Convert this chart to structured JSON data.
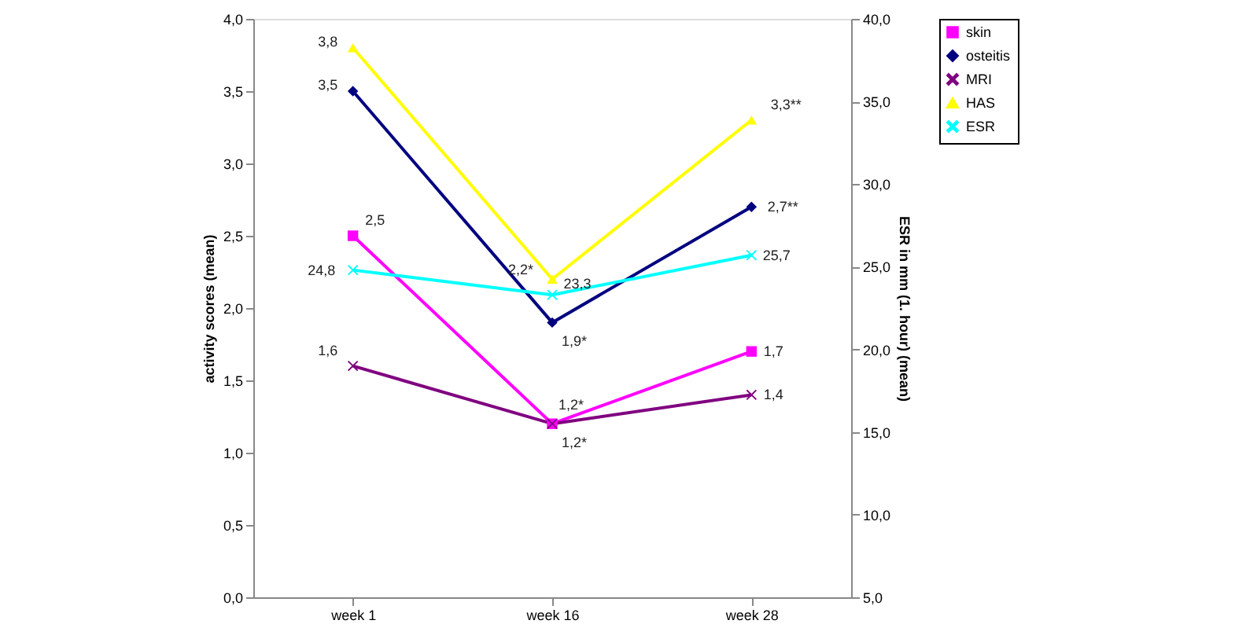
{
  "chart_data": {
    "type": "line",
    "ylabel": "activity scores (mean)",
    "y2label": "ESR in mm (1. hour) (mean)",
    "categories": [
      "week 1",
      "week 16",
      "week 28"
    ],
    "series": [
      {
        "name": "skin",
        "color": "#ff00ff",
        "marker": "square",
        "values": [
          2.5,
          1.2,
          1.7
        ],
        "value_labels": [
          "2,5",
          "1,2*",
          "1,7"
        ]
      },
      {
        "name": "osteitis",
        "color": "#000080",
        "marker": "diamond",
        "values": [
          3.5,
          1.9,
          2.7
        ],
        "value_labels": [
          "3,5",
          "1,9*",
          "2,7**"
        ]
      },
      {
        "name": "MRI",
        "color": "#800080",
        "marker": "cross",
        "values": [
          1.6,
          1.2,
          1.4
        ],
        "value_labels": [
          "1,6",
          "1,2*",
          "1,4"
        ]
      },
      {
        "name": "HAS",
        "color": "#ffff00",
        "marker": "triangle",
        "values": [
          3.8,
          2.2,
          3.3
        ],
        "value_labels": [
          "3,8",
          "2,2*",
          "3,3**"
        ]
      },
      {
        "name": "ESR",
        "color": "#00ffff",
        "marker": "cross",
        "axis": "y2",
        "values": [
          24.8,
          23.3,
          25.7
        ],
        "value_labels": [
          "24,8",
          "23,3",
          "25,7"
        ]
      }
    ],
    "ylim": [
      0,
      4
    ],
    "yticks": [
      {
        "value": 0,
        "label": "0,0"
      },
      {
        "value": 0.5,
        "label": "0,5"
      },
      {
        "value": 1,
        "label": "1,0"
      },
      {
        "value": 1.5,
        "label": "1,5"
      },
      {
        "value": 2,
        "label": "2,0"
      },
      {
        "value": 2.5,
        "label": "2,5"
      },
      {
        "value": 3,
        "label": "3,0"
      },
      {
        "value": 3.5,
        "label": "3,5"
      },
      {
        "value": 4,
        "label": "4,0"
      }
    ],
    "y2lim": [
      5,
      40
    ],
    "y2ticks": [
      {
        "value": 5,
        "label": "5,0"
      },
      {
        "value": 10,
        "label": "10,0"
      },
      {
        "value": 15,
        "label": "15,0"
      },
      {
        "value": 20,
        "label": "20,0"
      },
      {
        "value": 25,
        "label": "25,0"
      },
      {
        "value": 30,
        "label": "30,0"
      },
      {
        "value": 35,
        "label": "35,0"
      },
      {
        "value": 40,
        "label": "40,0"
      }
    ],
    "grid": false,
    "legend": "right"
  }
}
